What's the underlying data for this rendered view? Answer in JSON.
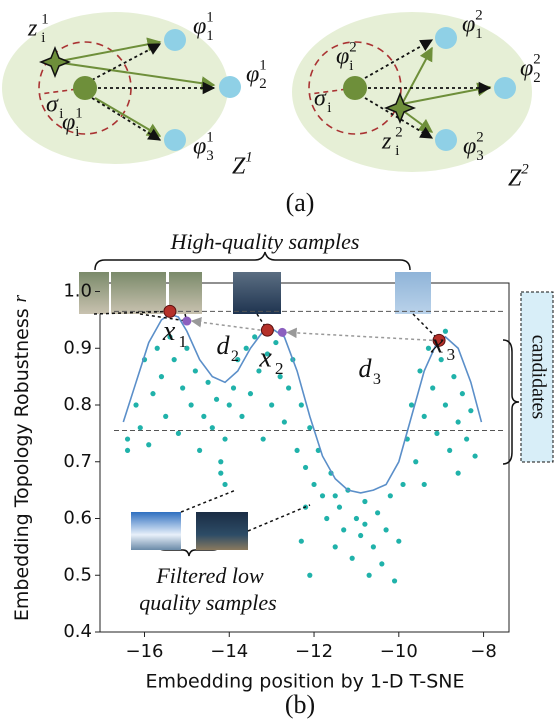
{
  "diagram_a": {
    "left": {
      "z": {
        "base": "z",
        "sub": "i",
        "sup": "1"
      },
      "phi1": {
        "base": "φ",
        "sub": "1",
        "sup": "1"
      },
      "phi2": {
        "base": "φ",
        "sub": "2",
        "sup": "1"
      },
      "phi3": {
        "base": "φ",
        "sub": "3",
        "sup": "1"
      },
      "phii": {
        "base": "φ",
        "sub": "i",
        "sup": "1"
      },
      "sigma": {
        "base": "σ",
        "sub": "i"
      },
      "space": {
        "base": "Z",
        "sup": "1"
      }
    },
    "right": {
      "z": {
        "base": "z",
        "sub": "i",
        "sup": "2"
      },
      "phi1": {
        "base": "φ",
        "sub": "1",
        "sup": "2"
      },
      "phi2": {
        "base": "φ",
        "sub": "2",
        "sup": "2"
      },
      "phi3": {
        "base": "φ",
        "sub": "3",
        "sup": "2"
      },
      "phii": {
        "base": "φ",
        "sub": "i",
        "sup": "2"
      },
      "sigma": {
        "base": "σ",
        "sub": "i"
      },
      "space": {
        "base": "Z",
        "sup": "2"
      }
    },
    "caption": "(a)"
  },
  "chart_data": {
    "type": "scatter",
    "caption": "(b)",
    "xlabel": "Embedding position by 1-D T-SNE",
    "ylabel": "Embedding Topology Robustness",
    "ylabel_symbol": "r",
    "xlim": [
      -17.05,
      -7.4
    ],
    "ylim": [
      0.4,
      1.015
    ],
    "xticks": [
      {
        "value": -16,
        "label": "−16"
      },
      {
        "value": -14,
        "label": "−14"
      },
      {
        "value": -12,
        "label": "−12"
      },
      {
        "value": -10,
        "label": "−10"
      },
      {
        "value": -8,
        "label": "−8"
      }
    ],
    "yticks": [
      0.4,
      0.5,
      0.6,
      0.7,
      0.8,
      0.9,
      {
        "value": 1,
        "label": "1.0"
      }
    ],
    "series": [
      {
        "color": "#20b2aa",
        "x": [
          -16.4,
          -16.4,
          -16.2,
          -16.1,
          -16.0,
          -15.9,
          -15.8,
          -15.7,
          -15.6,
          -15.5,
          -15.4,
          -15.3,
          -15.2,
          -15.1,
          -15.0,
          -14.9,
          -14.8,
          -14.7,
          -14.6,
          -14.5,
          -14.4,
          -14.3,
          -14.2,
          -14.1,
          -14.0,
          -14.2,
          -14.1,
          -13.9,
          -13.8,
          -13.7,
          -13.6,
          -13.5,
          -13.4,
          -13.3,
          -13.2,
          -13.1,
          -13.0,
          -12.9,
          -12.8,
          -12.7,
          -12.6,
          -12.5,
          -12.4,
          -12.3,
          -12.2,
          -12.1,
          -12.0,
          -11.9,
          -12.2,
          -12.3,
          -12.1,
          -11.8,
          -11.7,
          -11.6,
          -11.5,
          -11.4,
          -11.3,
          -11.2,
          -11.1,
          -11.0,
          -10.9,
          -10.8,
          -10.7,
          -10.6,
          -10.5,
          -10.4,
          -10.3,
          -10.2,
          -10.1,
          -10.0,
          -9.9,
          -11.5,
          -10.8,
          -9.8,
          -9.7,
          -9.6,
          -9.5,
          -9.4,
          -9.3,
          -9.2,
          -9.1,
          -9.0,
          -8.9,
          -8.8,
          -8.7,
          -8.6,
          -8.5,
          -8.4,
          -8.3,
          -8.2,
          -8.6,
          -8.9,
          -9.4
        ],
        "y": [
          0.74,
          0.72,
          0.8,
          0.76,
          0.88,
          0.73,
          0.82,
          0.9,
          0.85,
          0.78,
          0.92,
          0.88,
          0.75,
          0.83,
          0.9,
          0.8,
          0.86,
          0.72,
          0.78,
          0.84,
          0.76,
          0.81,
          0.7,
          0.74,
          0.8,
          0.68,
          0.66,
          0.83,
          0.88,
          0.78,
          0.9,
          0.82,
          0.92,
          0.86,
          0.74,
          0.89,
          0.8,
          0.91,
          0.85,
          0.77,
          0.83,
          0.88,
          0.72,
          0.8,
          0.69,
          0.76,
          0.66,
          0.72,
          0.62,
          0.56,
          0.5,
          0.64,
          0.6,
          0.68,
          0.55,
          0.62,
          0.58,
          0.65,
          0.53,
          0.6,
          0.57,
          0.63,
          0.5,
          0.55,
          0.61,
          0.52,
          0.58,
          0.64,
          0.49,
          0.56,
          0.66,
          0.64,
          0.59,
          0.74,
          0.8,
          0.7,
          0.86,
          0.78,
          0.9,
          0.83,
          0.75,
          0.88,
          0.8,
          0.72,
          0.85,
          0.77,
          0.82,
          0.74,
          0.79,
          0.71,
          0.68,
          0.93,
          0.66
        ]
      }
    ],
    "curve": {
      "color": "#5b8fc9",
      "x": [
        -16.5,
        -16.2,
        -15.9,
        -15.6,
        -15.4,
        -15.2,
        -15.0,
        -14.7,
        -14.4,
        -14.1,
        -13.8,
        -13.5,
        -13.2,
        -13.0,
        -12.7,
        -12.4,
        -12.1,
        -11.8,
        -11.5,
        -11.2,
        -10.9,
        -10.6,
        -10.3,
        -10.0,
        -9.7,
        -9.4,
        -9.1,
        -8.9,
        -8.6,
        -8.3,
        -8.05
      ],
      "y": [
        0.77,
        0.84,
        0.91,
        0.95,
        0.96,
        0.955,
        0.93,
        0.88,
        0.85,
        0.84,
        0.86,
        0.9,
        0.93,
        0.935,
        0.92,
        0.86,
        0.78,
        0.71,
        0.67,
        0.65,
        0.645,
        0.65,
        0.66,
        0.7,
        0.78,
        0.86,
        0.91,
        0.92,
        0.9,
        0.84,
        0.77
      ]
    },
    "selected": {
      "color": "#b5312a",
      "x": [
        -15.4,
        -13.1,
        -9.05
      ],
      "y": [
        0.965,
        0.932,
        0.914
      ]
    },
    "nearest": {
      "color": "#8b5fbf",
      "x": [
        -15.0,
        -12.75
      ],
      "y": [
        0.948,
        0.928
      ]
    },
    "reference_lines": [
      0.965,
      0.755
    ],
    "point_labels": [
      {
        "base": "x",
        "sub": "1"
      },
      {
        "base": "x",
        "sub": "2"
      },
      {
        "base": "x",
        "sub": "3"
      }
    ],
    "distance_labels": [
      {
        "base": "d",
        "sub": "2"
      },
      {
        "base": "d",
        "sub": "3"
      }
    ],
    "high_quality_label": "High-quality samples",
    "low_quality_label": [
      "Filtered low",
      "quality samples"
    ],
    "candidates_label": "candidates"
  }
}
